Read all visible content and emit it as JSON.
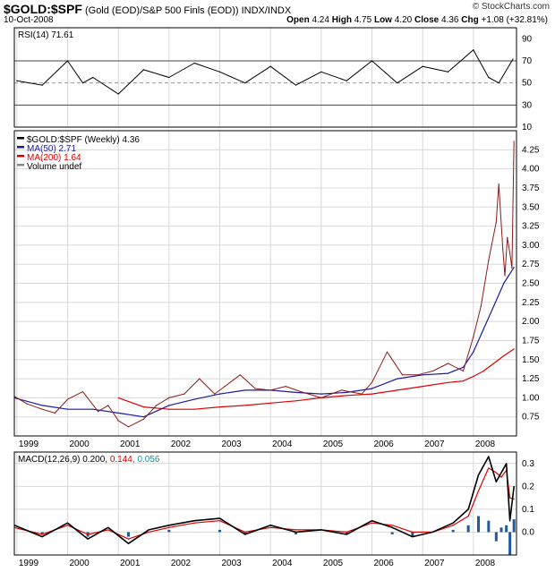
{
  "header": {
    "symbol": "$GOLD:$SPF",
    "description": "(Gold (EOD)/S&P 500 Finls (EOD))  INDX/INDX",
    "date": "10-Oct-2008",
    "quote": {
      "open_label": "Open",
      "open": "4.24",
      "high_label": "High",
      "high": "4.75",
      "low_label": "Low",
      "low": "4.20",
      "close_label": "Close",
      "close": "4.36",
      "chg_label": "Chg",
      "chg": "+1.08 (+32.81%)"
    },
    "watermark": "© StockCharts.com"
  },
  "colors": {
    "price": "#000000",
    "ma50": "#1a1aa0",
    "ma200": "#e00000",
    "volume": "#888888",
    "rsi": "#000000",
    "macd": "#000000",
    "signal": "#e00000",
    "histogram": "#1f5b9a",
    "grid": "#d8d8d8"
  },
  "chart_data": [
    {
      "type": "line",
      "title": "RSI(14) 71.61",
      "x": [
        1999.0,
        1999.5,
        2000.0,
        2000.3,
        2000.5,
        2001.0,
        2001.5,
        2002.0,
        2002.5,
        2003.0,
        2003.5,
        2004.0,
        2004.5,
        2005.0,
        2005.5,
        2006.0,
        2006.5,
        2007.0,
        2007.5,
        2008.0,
        2008.3,
        2008.5,
        2008.78
      ],
      "values": [
        52,
        48,
        70,
        50,
        55,
        40,
        62,
        55,
        68,
        60,
        50,
        65,
        48,
        60,
        52,
        70,
        50,
        65,
        60,
        80,
        55,
        50,
        71.61
      ],
      "ylim": [
        10,
        100
      ],
      "yticks": [
        10,
        30,
        50,
        70,
        90
      ],
      "reference_lines": [
        30,
        50,
        70
      ]
    },
    {
      "type": "line",
      "title": "$GOLD:$SPF (Weekly) 4.36",
      "legend": [
        "$GOLD:$SPF (Weekly) 4.36",
        "MA(50) 2.71",
        "MA(200) 1.64",
        "Volume undef"
      ],
      "ylim": [
        0.5,
        4.5
      ],
      "yticks": [
        0.75,
        1.0,
        1.25,
        1.5,
        1.75,
        2.0,
        2.25,
        2.5,
        2.75,
        3.0,
        3.25,
        3.5,
        3.75,
        4.0,
        4.25
      ],
      "xticks": [
        "1999",
        "2000",
        "2001",
        "2002",
        "2003",
        "2004",
        "2005",
        "2006",
        "2007",
        "2008"
      ],
      "xlim": [
        1998.95,
        2008.85
      ],
      "series": [
        {
          "name": "$GOLD:$SPF",
          "x": [
            1998.95,
            1999.2,
            1999.5,
            1999.75,
            2000.0,
            2000.3,
            2000.6,
            2000.8,
            2001.0,
            2001.2,
            2001.5,
            2001.75,
            2002.0,
            2002.3,
            2002.6,
            2002.9,
            2003.1,
            2003.4,
            2003.7,
            2004.0,
            2004.3,
            2004.6,
            2005.0,
            2005.4,
            2005.8,
            2006.0,
            2006.3,
            2006.6,
            2006.9,
            2007.2,
            2007.5,
            2007.8,
            2008.0,
            2008.15,
            2008.3,
            2008.45,
            2008.5,
            2008.58,
            2008.62,
            2008.67,
            2008.72,
            2008.76,
            2008.8
          ],
          "values": [
            1.02,
            0.92,
            0.85,
            0.8,
            0.98,
            1.08,
            0.82,
            0.9,
            0.7,
            0.62,
            0.72,
            0.9,
            1.0,
            1.05,
            1.25,
            1.05,
            1.15,
            1.3,
            1.12,
            1.1,
            1.15,
            1.08,
            1.0,
            1.1,
            1.05,
            1.2,
            1.6,
            1.3,
            1.3,
            1.35,
            1.45,
            1.35,
            1.8,
            2.2,
            2.8,
            3.3,
            3.8,
            2.95,
            2.6,
            3.1,
            2.9,
            2.7,
            4.36
          ]
        },
        {
          "name": "MA(50)",
          "x": [
            1998.95,
            1999.5,
            2000.0,
            2000.5,
            2001.0,
            2001.5,
            2002.0,
            2002.5,
            2003.0,
            2003.5,
            2004.0,
            2004.5,
            2005.0,
            2005.5,
            2006.0,
            2006.5,
            2007.0,
            2007.5,
            2007.8,
            2008.0,
            2008.2,
            2008.4,
            2008.6,
            2008.8
          ],
          "values": [
            1.0,
            0.9,
            0.85,
            0.85,
            0.8,
            0.75,
            0.9,
            0.98,
            1.05,
            1.1,
            1.1,
            1.07,
            1.05,
            1.07,
            1.12,
            1.25,
            1.3,
            1.32,
            1.4,
            1.6,
            1.9,
            2.2,
            2.5,
            2.71
          ]
        },
        {
          "name": "MA(200)",
          "x": [
            2001.0,
            2001.5,
            2002.0,
            2002.5,
            2003.0,
            2003.5,
            2004.0,
            2004.5,
            2005.0,
            2005.5,
            2006.0,
            2006.5,
            2007.0,
            2007.5,
            2007.8,
            2008.0,
            2008.2,
            2008.4,
            2008.6,
            2008.8
          ],
          "values": [
            1.0,
            0.88,
            0.85,
            0.85,
            0.88,
            0.9,
            0.93,
            0.96,
            1.0,
            1.03,
            1.05,
            1.1,
            1.15,
            1.2,
            1.22,
            1.28,
            1.35,
            1.45,
            1.55,
            1.64
          ]
        }
      ]
    },
    {
      "type": "line",
      "title": "MACD(12,26,9)",
      "label_values": {
        "macd": "0.200",
        "signal": "0.144",
        "histogram": "0.056"
      },
      "ylim": [
        -0.1,
        0.35
      ],
      "yticks": [
        0.0,
        0.1,
        0.2,
        0.3
      ],
      "xticks": [
        "1999",
        "2000",
        "2001",
        "2002",
        "2003",
        "2004",
        "2005",
        "2006",
        "2007",
        "2008"
      ],
      "series": [
        {
          "name": "MACD",
          "x": [
            1998.95,
            1999.5,
            2000.0,
            2000.4,
            2000.8,
            2001.2,
            2001.6,
            2002.0,
            2002.5,
            2003.0,
            2003.5,
            2004.0,
            2004.5,
            2005.0,
            2005.5,
            2006.0,
            2006.4,
            2006.8,
            2007.2,
            2007.6,
            2007.9,
            2008.1,
            2008.3,
            2008.45,
            2008.55,
            2008.65,
            2008.72,
            2008.8
          ],
          "values": [
            0.03,
            -0.02,
            0.04,
            -0.03,
            0.02,
            -0.05,
            0.01,
            0.03,
            0.05,
            0.06,
            -0.01,
            0.03,
            0.0,
            0.01,
            -0.01,
            0.05,
            0.02,
            -0.02,
            0.0,
            0.04,
            0.1,
            0.25,
            0.33,
            0.22,
            0.26,
            0.3,
            0.05,
            0.2
          ]
        },
        {
          "name": "Signal",
          "x": [
            1998.95,
            1999.5,
            2000.0,
            2000.4,
            2000.8,
            2001.2,
            2001.6,
            2002.0,
            2002.5,
            2003.0,
            2003.5,
            2004.0,
            2004.5,
            2005.0,
            2005.5,
            2006.0,
            2006.4,
            2006.8,
            2007.2,
            2007.6,
            2007.9,
            2008.1,
            2008.3,
            2008.45,
            2008.55,
            2008.65,
            2008.72,
            2008.8
          ],
          "values": [
            0.02,
            -0.01,
            0.03,
            -0.01,
            0.01,
            -0.03,
            0.0,
            0.02,
            0.04,
            0.05,
            0.0,
            0.02,
            0.01,
            0.01,
            0.0,
            0.04,
            0.03,
            0.0,
            0.0,
            0.03,
            0.07,
            0.18,
            0.28,
            0.26,
            0.24,
            0.27,
            0.15,
            0.144
          ]
        },
        {
          "name": "Histogram",
          "x": [
            1999.5,
            2000.4,
            2001.2,
            2002.0,
            2003.0,
            2003.5,
            2004.5,
            2005.5,
            2006.4,
            2006.8,
            2007.6,
            2007.9,
            2008.1,
            2008.3,
            2008.45,
            2008.55,
            2008.65,
            2008.72,
            2008.8
          ],
          "values": [
            -0.01,
            -0.02,
            -0.02,
            0.01,
            0.01,
            -0.01,
            -0.01,
            -0.01,
            -0.01,
            -0.02,
            0.01,
            0.03,
            0.07,
            0.05,
            -0.04,
            0.02,
            0.03,
            -0.1,
            0.056
          ]
        }
      ]
    }
  ]
}
